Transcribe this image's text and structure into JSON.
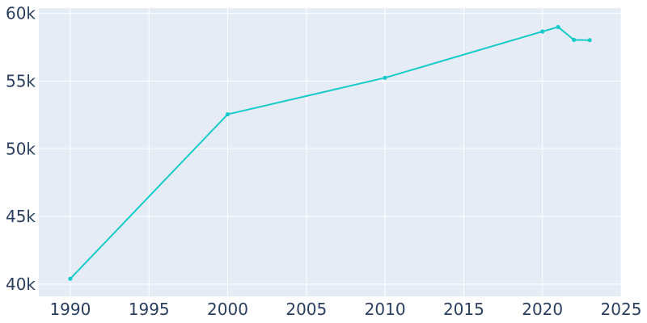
{
  "chart_data": {
    "type": "line",
    "x": [
      1990,
      2000,
      2010,
      2020,
      2021,
      2022,
      2023
    ],
    "series": [
      {
        "values": [
          40400,
          52550,
          55250,
          58670,
          59000,
          58050,
          58030
        ]
      }
    ],
    "xlim": [
      1988,
      2025
    ],
    "ylim": [
      39100,
      60400
    ],
    "x_ticks": [
      {
        "value": 1990,
        "label": "1990"
      },
      {
        "value": 1995,
        "label": "1995"
      },
      {
        "value": 2000,
        "label": "2000"
      },
      {
        "value": 2005,
        "label": "2005"
      },
      {
        "value": 2010,
        "label": "2010"
      },
      {
        "value": 2015,
        "label": "2015"
      },
      {
        "value": 2020,
        "label": "2020"
      },
      {
        "value": 2025,
        "label": "2025"
      }
    ],
    "y_ticks": [
      {
        "value": 40000,
        "label": "40k"
      },
      {
        "value": 45000,
        "label": "45k"
      },
      {
        "value": 50000,
        "label": "50k"
      },
      {
        "value": 55000,
        "label": "55k"
      },
      {
        "value": 60000,
        "label": "60k"
      }
    ],
    "grid": true,
    "colors": {
      "line": "#17cbc9",
      "plot_background": "#e5ecf6",
      "grid": "#ffffff",
      "tick_text": "#2a3f5f"
    }
  }
}
